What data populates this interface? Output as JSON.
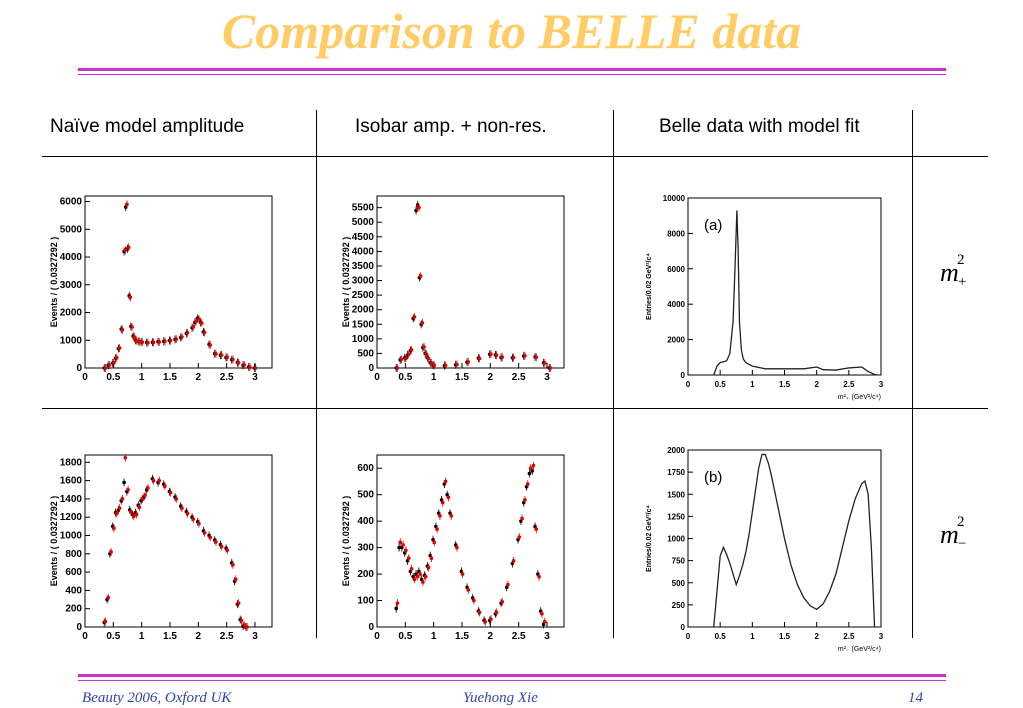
{
  "slide": {
    "title": "Comparison to BELLE data",
    "accent_color": "#ffcc66",
    "rule_color": "#cc33cc"
  },
  "columns": [
    "Naïve model amplitude",
    "Isobar amp. + non-res.",
    "Belle data with model fit"
  ],
  "rows": [
    {
      "label_base": "m",
      "label_sup": "2",
      "label_sub": "+"
    },
    {
      "label_base": "m",
      "label_sup": "2",
      "label_sub": "−"
    }
  ],
  "footer": {
    "left": "Beauty 2006, Oxford UK",
    "center": "Yuehong Xie",
    "page": "14"
  },
  "chart_data": [
    {
      "id": "naive-mplus",
      "type": "scatter",
      "ylabel": "Events / ( 0.0327292 )",
      "xlim": [
        0,
        3.3
      ],
      "ylim": [
        0,
        6200
      ],
      "xticks": [
        "0",
        "0.5",
        "1",
        "1.5",
        "2",
        "2.5",
        "3"
      ],
      "yticks": [
        "0",
        "1000",
        "2000",
        "3000",
        "4000",
        "5000",
        "6000"
      ],
      "series": [
        {
          "color": "#000000",
          "x": [
            0.35,
            0.42,
            0.5,
            0.55,
            0.6,
            0.65,
            0.7,
            0.73,
            0.76,
            0.79,
            0.82,
            0.86,
            0.9,
            0.95,
            1.0,
            1.1,
            1.2,
            1.3,
            1.4,
            1.5,
            1.6,
            1.7,
            1.8,
            1.9,
            1.95,
            2.0,
            2.05,
            2.1,
            2.2,
            2.3,
            2.4,
            2.5,
            2.6,
            2.7,
            2.8,
            2.9,
            3.0
          ],
          "y": [
            0,
            100,
            180,
            350,
            700,
            1400,
            4200,
            5800,
            4300,
            2600,
            1500,
            1150,
            1000,
            960,
            940,
            920,
            930,
            950,
            960,
            990,
            1030,
            1100,
            1250,
            1450,
            1650,
            1800,
            1650,
            1300,
            850,
            520,
            460,
            380,
            300,
            200,
            100,
            40,
            0
          ]
        },
        {
          "color": "#e00000",
          "x": [
            0.35,
            0.42,
            0.5,
            0.55,
            0.6,
            0.65,
            0.7,
            0.73,
            0.76,
            0.79,
            0.82,
            0.86,
            0.9,
            0.95,
            1.0,
            1.1,
            1.2,
            1.3,
            1.4,
            1.5,
            1.6,
            1.7,
            1.8,
            1.9,
            1.95,
            2.0,
            2.05,
            2.1,
            2.2,
            2.3,
            2.4,
            2.5,
            2.6,
            2.7,
            2.8,
            2.9,
            3.0
          ],
          "y": [
            0,
            110,
            190,
            370,
            720,
            1380,
            4250,
            5900,
            4350,
            2550,
            1480,
            1120,
            990,
            950,
            930,
            910,
            925,
            940,
            965,
            985,
            1040,
            1120,
            1270,
            1480,
            1680,
            1760,
            1620,
            1280,
            830,
            510,
            470,
            390,
            310,
            190,
            110,
            30,
            0
          ]
        }
      ]
    },
    {
      "id": "isobar-mplus",
      "type": "scatter",
      "ylabel": "Events / ( 0.0327292 )",
      "xlim": [
        0,
        3.3
      ],
      "ylim": [
        0,
        5900
      ],
      "xticks": [
        "0",
        "0.5",
        "1",
        "1.5",
        "2",
        "2.5",
        "3"
      ],
      "yticks": [
        "0",
        "500",
        "1000",
        "1500",
        "2000",
        "2500",
        "3000",
        "3500",
        "4000",
        "4500",
        "5000",
        "5500"
      ],
      "series": [
        {
          "color": "#000000",
          "x": [
            0.35,
            0.42,
            0.5,
            0.55,
            0.6,
            0.65,
            0.7,
            0.73,
            0.76,
            0.79,
            0.82,
            0.86,
            0.9,
            0.95,
            1.0,
            1.2,
            1.4,
            1.6,
            1.8,
            2.0,
            2.1,
            2.2,
            2.4,
            2.6,
            2.8,
            2.95,
            3.05
          ],
          "y": [
            0,
            280,
            350,
            450,
            600,
            1700,
            5400,
            5600,
            3100,
            1500,
            700,
            500,
            350,
            180,
            100,
            80,
            110,
            200,
            340,
            470,
            450,
            360,
            350,
            410,
            380,
            180,
            0
          ]
        },
        {
          "color": "#e00000",
          "x": [
            0.35,
            0.42,
            0.5,
            0.55,
            0.6,
            0.65,
            0.7,
            0.73,
            0.76,
            0.79,
            0.82,
            0.86,
            0.9,
            0.95,
            1.0,
            1.2,
            1.4,
            1.6,
            1.8,
            2.0,
            2.1,
            2.2,
            2.4,
            2.6,
            2.8,
            2.95,
            3.05
          ],
          "y": [
            0,
            300,
            330,
            470,
            620,
            1750,
            5500,
            5500,
            3150,
            1550,
            720,
            480,
            330,
            170,
            90,
            90,
            120,
            210,
            330,
            480,
            440,
            370,
            360,
            420,
            370,
            170,
            0
          ]
        }
      ]
    },
    {
      "id": "belle-mplus",
      "type": "line",
      "label": "(a)",
      "ylabel": "Entries/0.02 GeV²/c⁴",
      "xlabel": "m²₊ (GeV²/c⁴)",
      "xlim": [
        0,
        3
      ],
      "ylim": [
        0,
        10000
      ],
      "xticks": [
        "0",
        "0.5",
        "1",
        "1.5",
        "2",
        "2.5",
        "3"
      ],
      "yticks": [
        "0",
        "2000",
        "4000",
        "6000",
        "8000",
        "10000"
      ],
      "series": [
        {
          "color": "#222222",
          "x": [
            0.4,
            0.45,
            0.5,
            0.6,
            0.65,
            0.7,
            0.73,
            0.76,
            0.78,
            0.8,
            0.83,
            0.86,
            0.9,
            1.0,
            1.2,
            1.5,
            1.8,
            2.0,
            2.1,
            2.3,
            2.5,
            2.7,
            2.8,
            2.9,
            2.95
          ],
          "y": [
            0,
            500,
            700,
            800,
            1200,
            3000,
            6000,
            9300,
            7000,
            3000,
            1400,
            900,
            700,
            500,
            350,
            350,
            350,
            450,
            300,
            280,
            400,
            450,
            200,
            30,
            0
          ]
        }
      ]
    },
    {
      "id": "naive-mminus",
      "type": "scatter",
      "ylabel": "Events / ( 0.0327292 )",
      "xlim": [
        0,
        3.3
      ],
      "ylim": [
        0,
        1880
      ],
      "xticks": [
        "0",
        "0.5",
        "1",
        "1.5",
        "2",
        "2.5",
        "3"
      ],
      "yticks": [
        "0",
        "200",
        "400",
        "600",
        "800",
        "1000",
        "1200",
        "1400",
        "1600",
        "1800"
      ],
      "series": [
        {
          "color": "#000000",
          "x": [
            0.35,
            0.4,
            0.45,
            0.5,
            0.55,
            0.6,
            0.65,
            0.7,
            0.75,
            0.8,
            0.85,
            0.9,
            0.95,
            1.0,
            1.05,
            1.1,
            1.2,
            1.3,
            1.4,
            1.5,
            1.6,
            1.7,
            1.8,
            1.9,
            2.0,
            2.1,
            2.2,
            2.3,
            2.4,
            2.5,
            2.6,
            2.65,
            2.7,
            2.75,
            2.8,
            2.85
          ],
          "y": [
            50,
            300,
            800,
            1100,
            1250,
            1280,
            1380,
            1580,
            1480,
            1280,
            1230,
            1250,
            1330,
            1380,
            1420,
            1500,
            1620,
            1580,
            1560,
            1480,
            1420,
            1320,
            1260,
            1200,
            1150,
            1050,
            1000,
            950,
            900,
            860,
            700,
            500,
            250,
            80,
            10,
            0
          ]
        },
        {
          "color": "#e00000",
          "x": [
            0.35,
            0.4,
            0.45,
            0.5,
            0.55,
            0.6,
            0.65,
            0.7,
            0.75,
            0.8,
            0.85,
            0.9,
            0.95,
            1.0,
            1.05,
            1.1,
            1.2,
            1.3,
            1.4,
            1.5,
            1.6,
            1.7,
            1.8,
            1.9,
            2.0,
            2.1,
            2.2,
            2.3,
            2.4,
            2.5,
            2.6,
            2.65,
            2.7,
            2.75,
            2.8,
            2.85
          ],
          "y": [
            60,
            320,
            820,
            1080,
            1240,
            1300,
            1400,
            1850,
            1500,
            1260,
            1210,
            1230,
            1310,
            1400,
            1440,
            1520,
            1600,
            1600,
            1540,
            1470,
            1400,
            1300,
            1240,
            1180,
            1130,
            1030,
            980,
            930,
            880,
            840,
            680,
            520,
            260,
            70,
            20,
            0
          ]
        }
      ]
    },
    {
      "id": "isobar-mminus",
      "type": "scatter",
      "ylabel": "Events / ( 0.0327292 )",
      "xlim": [
        0,
        3.3
      ],
      "ylim": [
        0,
        650
      ],
      "xticks": [
        "0",
        "0.5",
        "1",
        "1.5",
        "2",
        "2.5",
        "3"
      ],
      "yticks": [
        "0",
        "100",
        "200",
        "300",
        "400",
        "500",
        "600"
      ],
      "series": [
        {
          "color": "#000000",
          "x": [
            0.35,
            0.4,
            0.45,
            0.5,
            0.55,
            0.6,
            0.65,
            0.7,
            0.75,
            0.8,
            0.85,
            0.9,
            0.95,
            1.0,
            1.05,
            1.1,
            1.15,
            1.2,
            1.25,
            1.3,
            1.4,
            1.5,
            1.6,
            1.7,
            1.8,
            1.9,
            2.0,
            2.1,
            2.2,
            2.3,
            2.4,
            2.5,
            2.55,
            2.6,
            2.65,
            2.7,
            2.75,
            2.8,
            2.85,
            2.9,
            2.95
          ],
          "y": [
            70,
            300,
            300,
            280,
            250,
            210,
            190,
            200,
            210,
            180,
            195,
            230,
            270,
            330,
            380,
            430,
            480,
            540,
            500,
            430,
            310,
            210,
            150,
            110,
            60,
            25,
            25,
            50,
            90,
            150,
            240,
            330,
            400,
            470,
            530,
            580,
            590,
            380,
            200,
            60,
            10
          ]
        },
        {
          "color": "#e00000",
          "x": [
            0.35,
            0.4,
            0.45,
            0.5,
            0.55,
            0.6,
            0.65,
            0.7,
            0.75,
            0.8,
            0.85,
            0.9,
            0.95,
            1.0,
            1.05,
            1.1,
            1.15,
            1.2,
            1.25,
            1.3,
            1.4,
            1.5,
            1.6,
            1.7,
            1.8,
            1.9,
            2.0,
            2.1,
            2.2,
            2.3,
            2.4,
            2.5,
            2.55,
            2.6,
            2.65,
            2.7,
            2.75,
            2.8,
            2.85,
            2.9,
            2.95
          ],
          "y": [
            90,
            320,
            310,
            290,
            260,
            220,
            180,
            190,
            200,
            170,
            190,
            225,
            260,
            320,
            370,
            420,
            470,
            550,
            490,
            420,
            300,
            200,
            140,
            100,
            55,
            20,
            30,
            55,
            95,
            160,
            250,
            340,
            410,
            480,
            540,
            600,
            610,
            370,
            190,
            50,
            20
          ]
        }
      ]
    },
    {
      "id": "belle-mminus",
      "type": "line",
      "label": "(b)",
      "ylabel": "Entries/0.02 GeV²/c⁴",
      "xlabel": "m²₋ (GeV²/c⁴)",
      "xlim": [
        0,
        3
      ],
      "ylim": [
        0,
        2000
      ],
      "xticks": [
        "0",
        "0.5",
        "1",
        "1.5",
        "2",
        "2.5",
        "3"
      ],
      "yticks": [
        "0",
        "250",
        "500",
        "750",
        "1000",
        "1250",
        "1500",
        "1750",
        "2000"
      ],
      "series": [
        {
          "color": "#222222",
          "x": [
            0.4,
            0.45,
            0.5,
            0.55,
            0.6,
            0.65,
            0.7,
            0.75,
            0.8,
            0.85,
            0.9,
            0.95,
            1.0,
            1.05,
            1.1,
            1.15,
            1.2,
            1.25,
            1.3,
            1.4,
            1.5,
            1.6,
            1.7,
            1.8,
            1.9,
            2.0,
            2.1,
            2.2,
            2.3,
            2.4,
            2.5,
            2.6,
            2.7,
            2.75,
            2.8,
            2.85,
            2.9
          ],
          "y": [
            0,
            400,
            800,
            900,
            820,
            720,
            600,
            480,
            580,
            700,
            850,
            1050,
            1300,
            1550,
            1800,
            1950,
            1950,
            1850,
            1700,
            1350,
            1000,
            700,
            480,
            330,
            240,
            200,
            260,
            400,
            600,
            900,
            1200,
            1450,
            1620,
            1650,
            1500,
            900,
            0
          ]
        }
      ]
    }
  ]
}
